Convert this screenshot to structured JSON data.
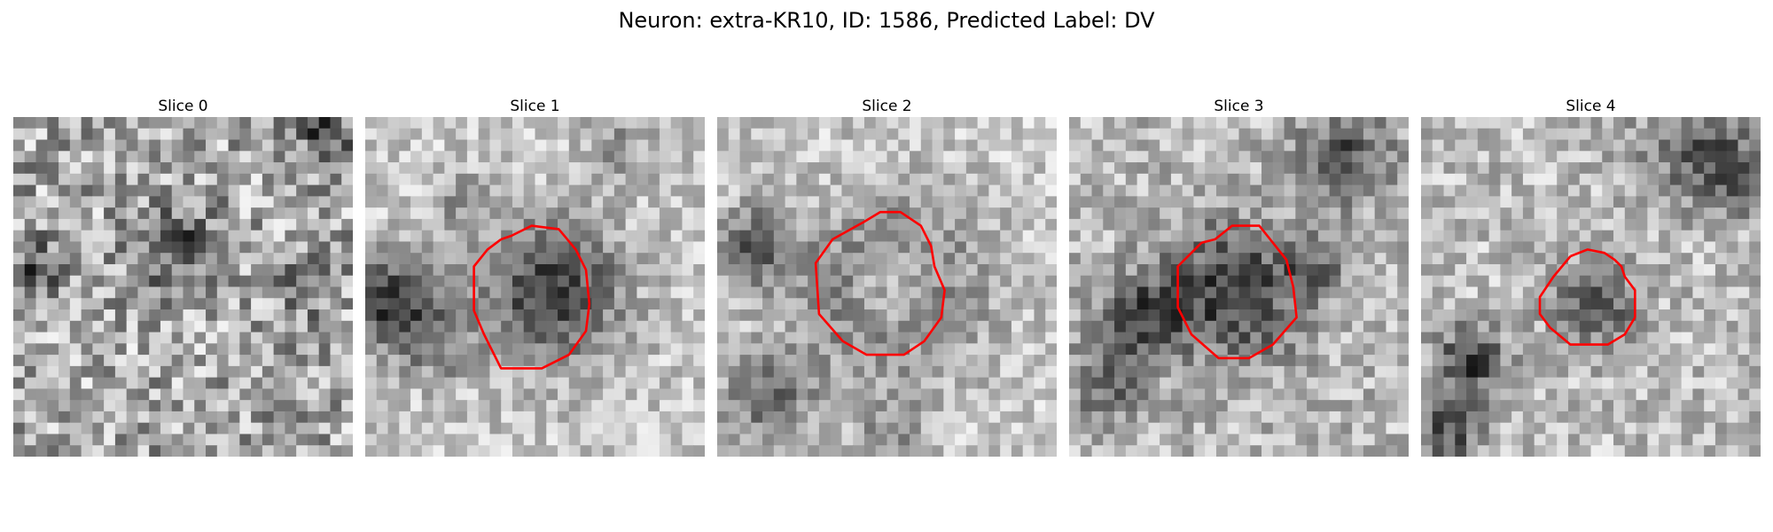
{
  "figure": {
    "title": "Neuron: extra-KR10, ID: 1586, Predicted Label: DV"
  },
  "colors": {
    "background": "#ffffff",
    "contour": "#ff0000"
  },
  "panels": [
    {
      "label": "Slice 0",
      "has_contour": false,
      "seed": 11
    },
    {
      "label": "Slice 1",
      "has_contour": true,
      "seed": 23
    },
    {
      "label": "Slice 2",
      "has_contour": true,
      "seed": 37
    },
    {
      "label": "Slice 3",
      "has_contour": true,
      "seed": 41
    },
    {
      "label": "Slice 4",
      "has_contour": true,
      "seed": 59
    }
  ]
}
